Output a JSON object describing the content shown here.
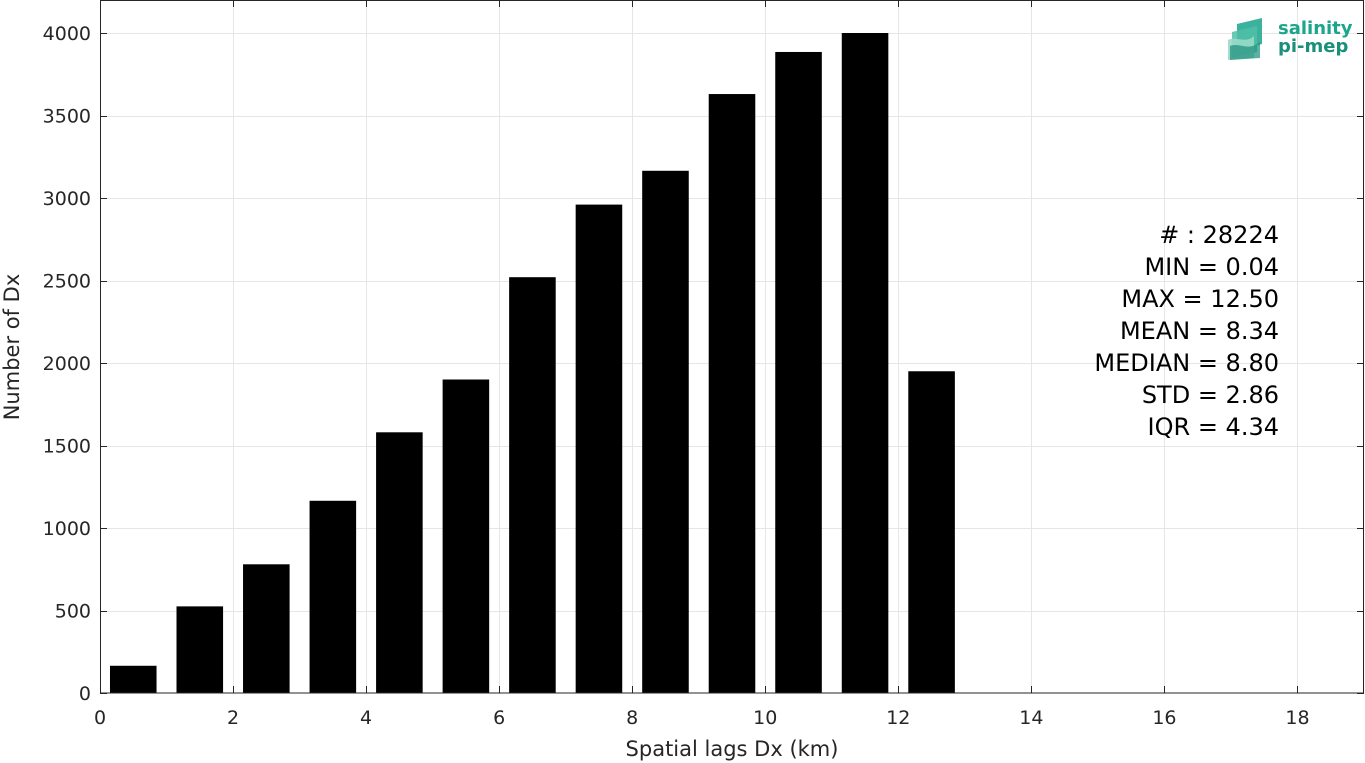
{
  "chart_data": {
    "type": "bar",
    "xlabel": "Spatial lags Dx (km)",
    "ylabel": "Number of Dx",
    "xlim": [
      0,
      19
    ],
    "ylim": [
      0,
      4200
    ],
    "grid": true,
    "x_ticks": [
      0,
      2,
      4,
      6,
      8,
      10,
      12,
      14,
      16,
      18
    ],
    "y_ticks": [
      0,
      500,
      1000,
      1500,
      2000,
      2500,
      3000,
      3500,
      4000
    ],
    "bar_width_km": 0.7,
    "bar_color": "#000000",
    "bar_centers": [
      0.5,
      1.5,
      2.5,
      3.5,
      4.5,
      5.5,
      6.5,
      7.5,
      8.5,
      9.5,
      10.5,
      11.5,
      12.5
    ],
    "values": [
      165,
      525,
      780,
      1165,
      1580,
      1900,
      2520,
      2960,
      3165,
      3630,
      3885,
      4000,
      1950
    ]
  },
  "stats": [
    "# : 28224",
    "MIN = 0.04",
    "MAX =  12.50",
    "MEAN = 8.34",
    "MEDIAN = 8.80",
    "STD = 2.86",
    "IQR = 4.34"
  ],
  "logo": {
    "line1": "salinity",
    "line2": "pi-mep",
    "color": "#1aa58c"
  }
}
